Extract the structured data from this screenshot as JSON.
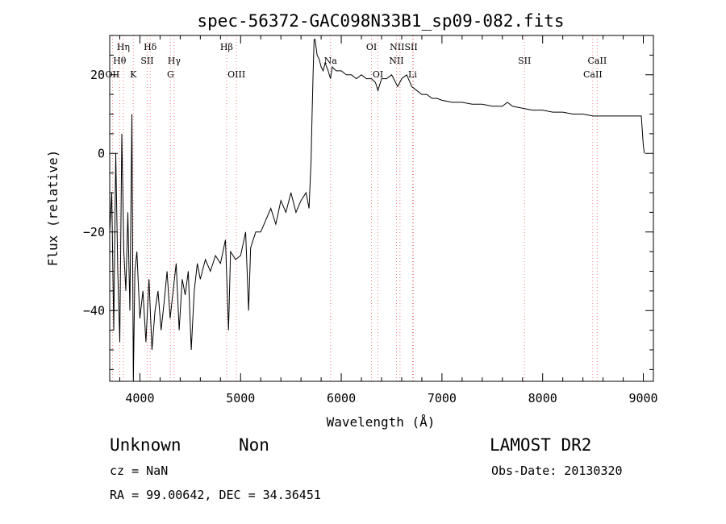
{
  "chart_data": {
    "type": "line",
    "title": "spec-56372-GAC098N33B1_sp09-082.fits",
    "xlabel": "Wavelength (Å)",
    "ylabel": "Flux (relative)",
    "xlim": [
      3700,
      9100
    ],
    "ylim": [
      -58,
      30
    ],
    "xticks": [
      4000,
      5000,
      6000,
      7000,
      8000,
      9000
    ],
    "yticks": [
      -40,
      -20,
      0,
      20
    ],
    "grid": false,
    "legend": "none",
    "line_color": "#000000",
    "line_marker_color": "#f08080",
    "spectral_lines": [
      {
        "label": "Hη",
        "x": 3835,
        "row": 1
      },
      {
        "label": "Hθ",
        "x": 3798,
        "row": 2
      },
      {
        "label": "OII",
        "x": 3727,
        "row": 3
      },
      {
        "label": "Hδ",
        "x": 4102,
        "row": 1
      },
      {
        "label": "SII",
        "x": 4072,
        "row": 2
      },
      {
        "label": "K",
        "x": 3934,
        "row": 3
      },
      {
        "label": "Hγ",
        "x": 4340,
        "row": 2
      },
      {
        "label": "G",
        "x": 4304,
        "row": 3
      },
      {
        "label": "Hβ",
        "x": 4861,
        "row": 1
      },
      {
        "label": "OIII",
        "x": 4959,
        "row": 3
      },
      {
        "label": "OI",
        "x": 6300,
        "row": 1
      },
      {
        "label": "NIISII",
        "x": 6620,
        "row": 1
      },
      {
        "label": "Na",
        "x": 5893,
        "row": 2
      },
      {
        "label": "NII",
        "x": 6548,
        "row": 2
      },
      {
        "label": "OI",
        "x": 6364,
        "row": 3
      },
      {
        "label": "Li",
        "x": 6708,
        "row": 3
      },
      {
        "label": "SII",
        "x": 7820,
        "row": 2
      },
      {
        "label": "CaII",
        "x": 8542,
        "row": 2
      },
      {
        "label": "CaII",
        "x": 8498,
        "row": 3
      }
    ],
    "marker_lines_x": [
      3727,
      3798,
      3835,
      3934,
      4072,
      4102,
      4304,
      4340,
      4861,
      4959,
      5893,
      6300,
      6364,
      6548,
      6583,
      6708,
      6716,
      7820,
      8498,
      8542
    ],
    "series": [
      {
        "x": [
          3700,
          3720,
          3740,
          3760,
          3780,
          3800,
          3820,
          3840,
          3860,
          3880,
          3900,
          3920,
          3935,
          3950,
          3970,
          4000,
          4030,
          4060,
          4090,
          4120,
          4150,
          4180,
          4210,
          4240,
          4270,
          4300,
          4330,
          4360,
          4390,
          4420,
          4450,
          4480,
          4510,
          4540,
          4570,
          4600,
          4650,
          4700,
          4750,
          4800,
          4850,
          4880,
          4900,
          4950,
          5000,
          5050,
          5080,
          5100,
          5150,
          5200,
          5250,
          5300,
          5350,
          5400,
          5450,
          5500,
          5550,
          5600,
          5650,
          5680,
          5700,
          5710,
          5720,
          5730,
          5740,
          5760,
          5780,
          5800,
          5820,
          5840,
          5870,
          5893,
          5910,
          5950,
          6000,
          6050,
          6100,
          6150,
          6200,
          6250,
          6300,
          6340,
          6364,
          6400,
          6450,
          6500,
          6560,
          6600,
          6650,
          6700,
          6750,
          6800,
          6850,
          6900,
          6950,
          7000,
          7100,
          7200,
          7300,
          7400,
          7500,
          7600,
          7650,
          7700,
          7800,
          7900,
          8000,
          8100,
          8200,
          8300,
          8400,
          8500,
          8600,
          8700,
          8800,
          8900,
          8980,
          9000,
          9010
        ],
        "y": [
          -20,
          -10,
          -45,
          0,
          -30,
          -48,
          5,
          -25,
          -35,
          -15,
          -40,
          10,
          -58,
          -30,
          -25,
          -42,
          -35,
          -48,
          -32,
          -50,
          -40,
          -35,
          -45,
          -38,
          -30,
          -42,
          -35,
          -28,
          -45,
          -32,
          -36,
          -30,
          -50,
          -35,
          -28,
          -32,
          -27,
          -30,
          -26,
          -28,
          -22,
          -45,
          -25,
          -27,
          -26,
          -20,
          -40,
          -24,
          -20,
          -20,
          -17,
          -14,
          -18,
          -12,
          -15,
          -10,
          -15,
          -12,
          -10,
          -14,
          -2,
          10,
          20,
          29,
          29,
          25,
          24,
          22,
          21,
          23,
          21,
          19,
          22,
          21,
          21,
          20,
          20,
          19,
          20,
          19,
          19,
          18,
          16,
          19,
          19,
          20,
          17,
          19,
          20,
          17,
          16,
          15,
          15,
          14,
          14,
          13.5,
          13,
          13,
          12.5,
          12.5,
          12,
          12,
          13,
          12,
          11.5,
          11,
          11,
          10.5,
          10.5,
          10,
          10,
          9.5,
          9.5,
          9.5,
          9.5,
          9.5,
          9.5,
          2,
          0
        ]
      }
    ]
  },
  "info": {
    "class_label": "Unknown",
    "subclass_label": "Non",
    "survey": "LAMOST DR2",
    "cz": "cz = NaN",
    "obs_date": "Obs-Date: 20130320",
    "coords": "RA =  99.00642, DEC =  34.36451"
  }
}
